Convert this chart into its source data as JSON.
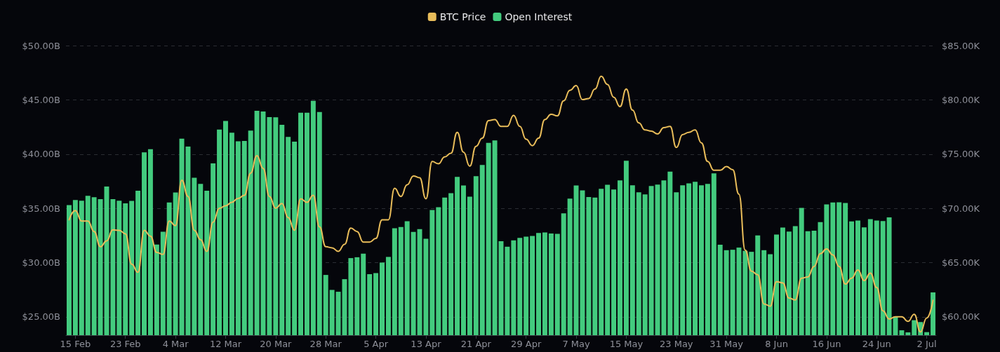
{
  "chart_data": {
    "type": "bar",
    "categories": [
      null,
      "15 Feb",
      null,
      null,
      null,
      null,
      null,
      null,
      null,
      "23 Feb",
      null,
      null,
      null,
      null,
      null,
      null,
      null,
      "4 Mar",
      null,
      null,
      null,
      null,
      null,
      null,
      null,
      "12 Mar",
      null,
      null,
      null,
      null,
      null,
      null,
      null,
      "20 Mar",
      null,
      null,
      null,
      null,
      null,
      null,
      null,
      "28 Mar",
      null,
      null,
      null,
      null,
      null,
      null,
      null,
      "5 Apr",
      null,
      null,
      null,
      null,
      null,
      null,
      null,
      "13 Apr",
      null,
      null,
      null,
      null,
      null,
      null,
      null,
      "21 Apr",
      null,
      null,
      null,
      null,
      null,
      null,
      null,
      "29 Apr",
      null,
      null,
      null,
      null,
      null,
      null,
      null,
      "7 May",
      null,
      null,
      null,
      null,
      null,
      null,
      null,
      "15 May",
      null,
      null,
      null,
      null,
      null,
      null,
      null,
      "23 May",
      null,
      null,
      null,
      null,
      null,
      null,
      null,
      "31 May",
      null,
      null,
      null,
      null,
      null,
      null,
      null,
      "8 Jun",
      null,
      null,
      null,
      null,
      null,
      null,
      null,
      "16 Jun",
      null,
      null,
      null,
      null,
      null,
      null,
      null,
      "24 Jun",
      null,
      null,
      null,
      null,
      null,
      null,
      null,
      "2 Jul",
      null
    ],
    "series": [
      {
        "name": "BTC Price",
        "type": "line",
        "axis": "y2",
        "color": "#e9bd5a",
        "values": [
          68.95,
          69.8,
          68.84,
          68.84,
          67.87,
          66.47,
          67.01,
          68.02,
          67.98,
          67.66,
          64.86,
          64.11,
          67.98,
          67.44,
          65.94,
          65.76,
          68.84,
          68.41,
          72.6,
          71.1,
          67.98,
          67.12,
          66.04,
          68.73,
          70.02,
          70.24,
          70.56,
          70.92,
          71.2,
          73.25,
          74.86,
          73.68,
          71.1,
          70.02,
          70.45,
          69.16,
          67.98,
          70.88,
          70.56,
          71.2,
          68.3,
          66.47,
          66.37,
          66.04,
          66.69,
          68.19,
          67.87,
          66.9,
          66.9,
          67.23,
          68.95,
          68.95,
          71.85,
          71.1,
          72.17,
          72.99,
          72.82,
          70.88,
          74.32,
          74.11,
          74.75,
          75.08,
          77.01,
          75.18,
          73.89,
          75.72,
          76.47,
          78.09,
          78.19,
          77.55,
          77.55,
          78.58,
          77.55,
          76.37,
          75.78,
          76.47,
          78.19,
          78.67,
          78.52,
          79.91,
          80.88,
          81.31,
          80.02,
          80.13,
          80.99,
          82.17,
          81.42,
          80.24,
          79.38,
          80.99,
          79.05,
          77.87,
          77.23,
          77.12,
          76.86,
          77.44,
          77.55,
          75.61,
          76.8,
          77.01,
          77.23,
          76.04,
          74.32,
          73.51,
          73.51,
          73.85,
          73.57,
          71.31,
          66.15,
          64.22,
          63.89,
          61.2,
          60.99,
          63.25,
          63.14,
          61.74,
          61.56,
          63.57,
          63.68,
          64.65,
          65.83,
          66.26,
          65.72,
          64.65,
          63.03,
          63.57,
          64.32,
          63.35,
          64.04,
          62.71,
          60.56,
          59.81,
          60.02,
          60.02,
          59.59,
          60.24,
          58.62,
          59.91,
          61.53
        ]
      },
      {
        "name": "Open Interest",
        "color": "#43cb7e",
        "values": [
          35.3,
          35.77,
          35.7,
          36.16,
          36.03,
          35.86,
          37.02,
          35.86,
          35.7,
          35.47,
          35.69,
          36.63,
          40.16,
          40.46,
          31.67,
          32.85,
          35.54,
          36.46,
          41.43,
          40.7,
          37.82,
          37.26,
          36.63,
          39.15,
          42.27,
          43.06,
          41.97,
          41.19,
          41.22,
          42.16,
          43.99,
          43.92,
          43.41,
          43.39,
          42.7,
          41.58,
          41.15,
          43.82,
          43.82,
          44.91,
          43.88,
          28.87,
          27.49,
          27.32,
          28.48,
          30.42,
          30.5,
          30.83,
          28.94,
          29.04,
          30.01,
          30.53,
          33.17,
          33.28,
          33.82,
          32.83,
          33.09,
          32.2,
          34.85,
          35.11,
          35.99,
          36.4,
          37.9,
          37.11,
          36.08,
          37.97,
          39.0,
          41.04,
          41.26,
          31.97,
          31.47,
          32.05,
          32.29,
          32.4,
          32.46,
          32.74,
          32.78,
          32.68,
          32.66,
          34.55,
          35.9,
          37.11,
          36.66,
          36.05,
          35.99,
          36.81,
          37.17,
          36.74,
          37.58,
          39.39,
          37.13,
          36.48,
          36.29,
          37.06,
          37.19,
          37.58,
          38.38,
          36.48,
          37.13,
          37.3,
          37.45,
          37.13,
          37.26,
          38.23,
          31.65,
          31.15,
          31.19,
          31.39,
          31.09,
          31.0,
          32.51,
          31.15,
          30.78,
          32.59,
          33.24,
          32.87,
          33.37,
          35.04,
          32.89,
          32.94,
          33.73,
          35.37,
          35.54,
          35.56,
          35.49,
          33.8,
          33.88,
          33.26,
          34.01,
          33.88,
          33.84,
          34.18,
          25.02,
          23.77,
          23.58,
          24.7,
          24.53,
          23.6,
          27.26
        ]
      }
    ],
    "ylim": [
      23.32,
      50
    ],
    "yticks": [
      {
        "value": 25,
        "label": "$25.00B"
      },
      {
        "value": 30,
        "label": "$30.00B"
      },
      {
        "value": 35,
        "label": "$35.00B"
      },
      {
        "value": 40,
        "label": "$40.00B"
      },
      {
        "value": 45,
        "label": "$45.00B"
      },
      {
        "value": 50,
        "label": "$50.00B"
      }
    ],
    "y2lim": [
      58.32,
      85
    ],
    "y2ticks": [
      {
        "value": 60,
        "label": "$60.00K"
      },
      {
        "value": 65,
        "label": "$65.00K"
      },
      {
        "value": 70,
        "label": "$70.00K"
      },
      {
        "value": 75,
        "label": "$75.00K"
      },
      {
        "value": 80,
        "label": "$80.00K"
      },
      {
        "value": 85,
        "label": "$85.00K"
      }
    ],
    "grid": "y",
    "legend": "top",
    "marker": "none"
  }
}
